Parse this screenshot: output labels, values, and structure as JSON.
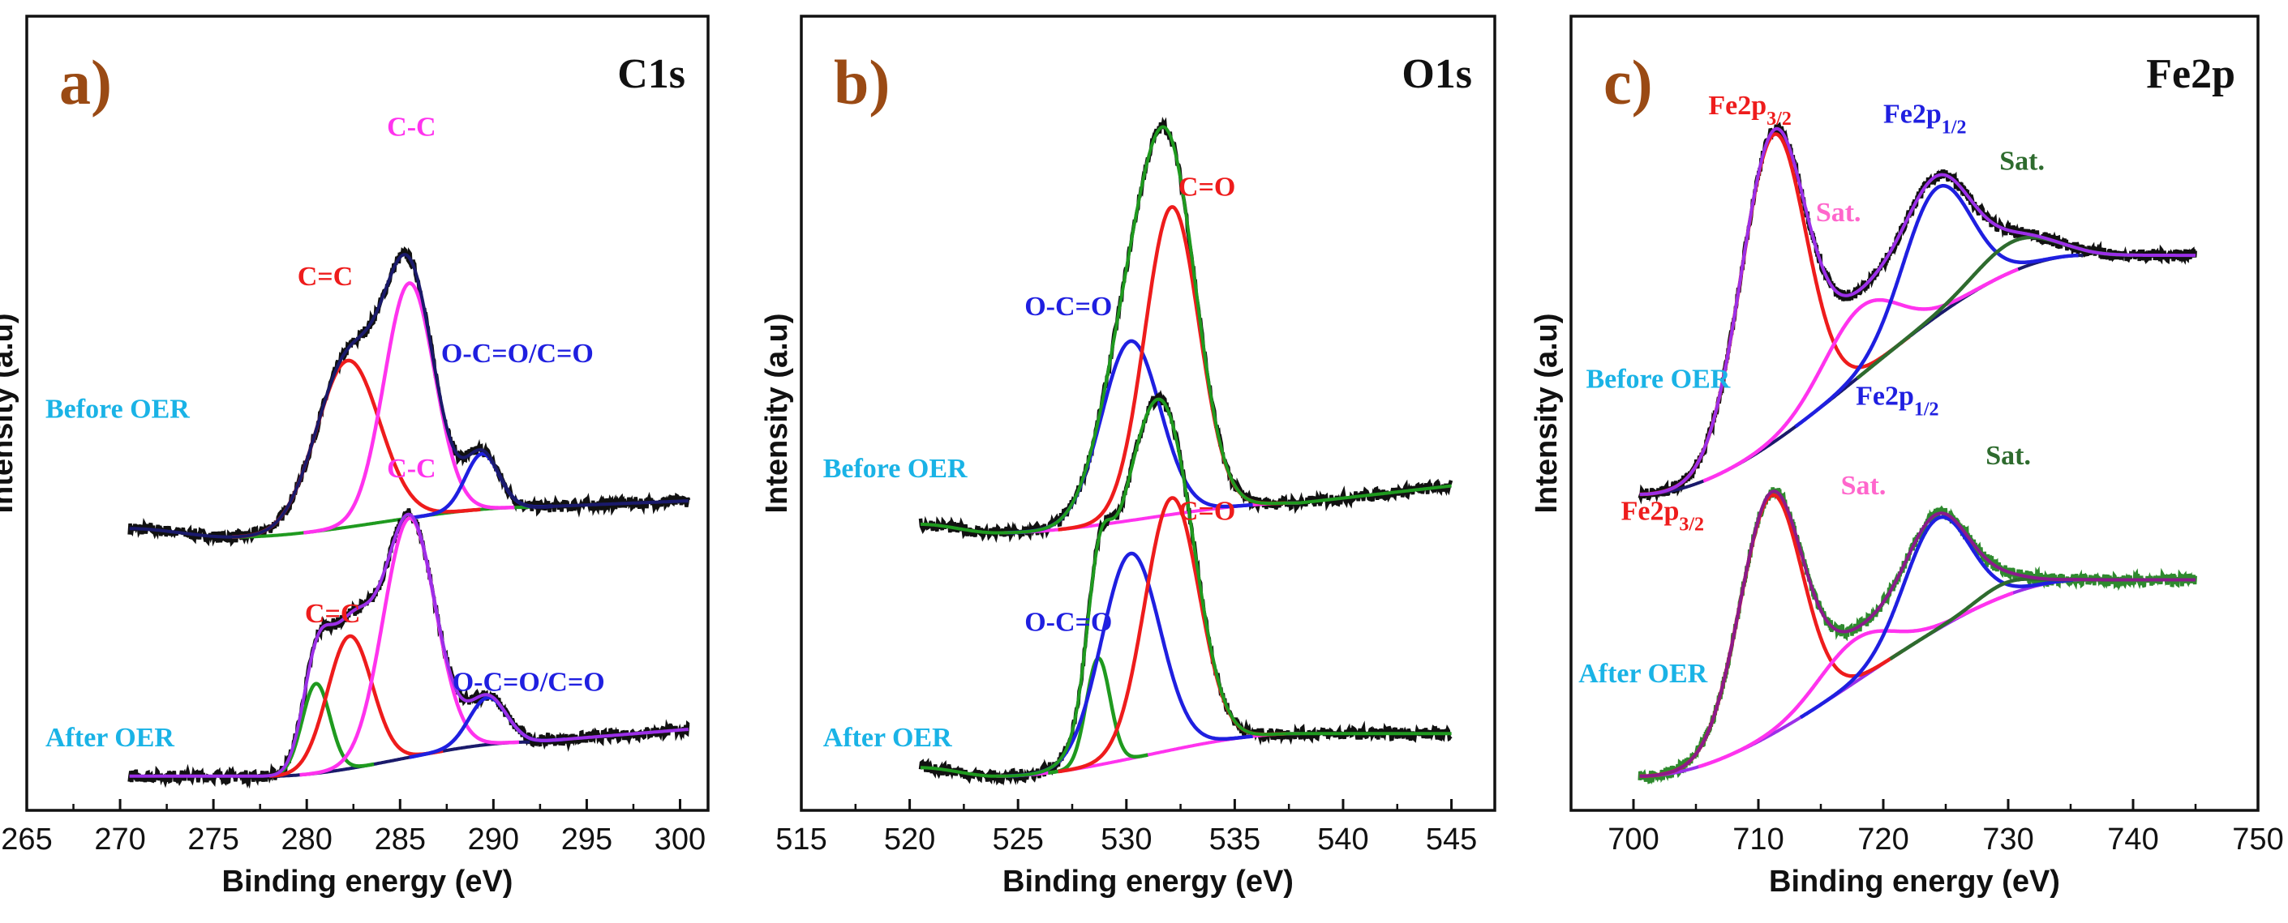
{
  "colors": {
    "frame": "#111111",
    "raw": "#111111",
    "panel_letter": "#9a4a14",
    "state_label": "#1ab3e6",
    "red": "#ee1c1c",
    "magenta": "#ff33ee",
    "blue": "#1f1fe0",
    "green": "#1f9a1f",
    "darkgreen": "#2e6b2e",
    "navy": "#1a1a6b",
    "purple": "#9b2fe8",
    "olive": "#2e8a2e",
    "maroon": "#8b1a8b",
    "pink": "#ff66cc"
  },
  "chart_data": [
    {
      "panel": "a",
      "type": "line",
      "letter": "a)",
      "title": "C1s",
      "xlabel": "Binding energy (eV)",
      "ylabel": "Intensity (a.u)",
      "xlim": [
        265,
        301.5
      ],
      "xticks": [
        265,
        270,
        275,
        280,
        285,
        290,
        295,
        300
      ],
      "stacks": [
        {
          "state": "Before OER",
          "x_range": [
            270.5,
            300.5
          ],
          "baseline_offset": 0.56,
          "raw_color": "#111111",
          "envelope_color": "#1a1a6b",
          "background": {
            "color": "#1f9a1f",
            "start": 0.0,
            "end": 0.07,
            "x_start": 276,
            "x_end": 292
          },
          "tail": {
            "left": 0.02,
            "right": 0.085
          },
          "peaks": [
            {
              "label": "C=C",
              "center": 282.2,
              "height": 0.39,
              "width": 1.7,
              "color": "#ee1c1c"
            },
            {
              "label": "C-C",
              "center": 285.5,
              "height": 0.55,
              "width": 1.35,
              "color": "#ff33ee"
            },
            {
              "label": "O-C=O/C=O",
              "center": 289.4,
              "height": 0.13,
              "width": 0.9,
              "color": "#1f1fe0"
            }
          ]
        },
        {
          "state": "After OER",
          "x_range": [
            270.5,
            300.5
          ],
          "baseline_offset": 0.0,
          "raw_color": "#111111",
          "envelope_color": "#9b2fe8",
          "background": {
            "color": "#1a1a6b",
            "start": 0.0,
            "end": 0.08,
            "x_start": 278,
            "x_end": 292
          },
          "tail": {
            "left": 0.0,
            "right": 0.11
          },
          "peaks": [
            {
              "label": "",
              "center": 280.5,
              "height": 0.21,
              "width": 0.75,
              "color": "#1f9a1f"
            },
            {
              "label": "C=C",
              "center": 282.3,
              "height": 0.31,
              "width": 1.2,
              "color": "#ee1c1c"
            },
            {
              "label": "C-C",
              "center": 285.5,
              "height": 0.56,
              "width": 1.4,
              "color": "#ff33ee"
            },
            {
              "label": "O-C=O/C=O",
              "center": 289.7,
              "height": 0.11,
              "width": 1.0,
              "color": "#1f1fe0"
            }
          ]
        }
      ],
      "labels": [
        {
          "text": "C-C",
          "x": 284.3,
          "y": 1.5,
          "color": "#ff33ee"
        },
        {
          "text": "C=C",
          "x": 279.5,
          "y": 1.15,
          "color": "#ee1c1c"
        },
        {
          "text": "O-C=O/C=O",
          "x": 287.2,
          "y": 0.97,
          "color": "#1f1fe0"
        },
        {
          "text": "Before OER",
          "x": 266.0,
          "y": 0.84,
          "color": "#1ab3e6"
        },
        {
          "text": "C-C",
          "x": 284.3,
          "y": 0.7,
          "color": "#ff33ee"
        },
        {
          "text": "C=C",
          "x": 279.9,
          "y": 0.36,
          "color": "#ee1c1c"
        },
        {
          "text": "O-C=O/C=O",
          "x": 287.8,
          "y": 0.2,
          "color": "#1f1fe0"
        },
        {
          "text": "After OER",
          "x": 266.0,
          "y": 0.07,
          "color": "#1ab3e6"
        }
      ]
    },
    {
      "panel": "b",
      "type": "line",
      "letter": "b)",
      "title": "O1s",
      "xlabel": "Binding energy (eV)",
      "ylabel": "Intensity (a.u)",
      "xlim": [
        515,
        547
      ],
      "xticks": [
        515,
        520,
        525,
        530,
        535,
        540,
        545
      ],
      "stacks": [
        {
          "state": "Before OER",
          "x_range": [
            520.5,
            545
          ],
          "baseline_offset": 0.57,
          "raw_color": "#111111",
          "envelope_color": "#1f9a1f",
          "background": {
            "color": "#ff33ee",
            "start": 0.0,
            "end": 0.07,
            "x_start": 524,
            "x_end": 538
          },
          "tail": {
            "left": 0.02,
            "right": 0.11
          },
          "peaks": [
            {
              "label": "O-C=O",
              "center": 530.2,
              "height": 0.42,
              "width": 1.35,
              "color": "#1f1fe0"
            },
            {
              "label": "C=O",
              "center": 532.1,
              "height": 0.72,
              "width": 1.25,
              "color": "#ee1c1c"
            }
          ]
        },
        {
          "state": "After OER",
          "x_range": [
            520.5,
            545
          ],
          "baseline_offset": 0.0,
          "raw_color": "#111111",
          "envelope_color": "#1f9a1f",
          "background": {
            "color": "#ff33ee",
            "start": 0.0,
            "end": 0.1,
            "x_start": 524,
            "x_end": 538
          },
          "tail": {
            "left": 0.02,
            "right": 0.1
          },
          "peaks": [
            {
              "label": "",
              "center": 528.7,
              "height": 0.25,
              "width": 0.55,
              "color": "#1f9a1f"
            },
            {
              "label": "O-C=O",
              "center": 530.2,
              "height": 0.48,
              "width": 1.35,
              "color": "#1f1fe0"
            },
            {
              "label": "C=O",
              "center": 532.1,
              "height": 0.59,
              "width": 1.25,
              "color": "#ee1c1c"
            }
          ]
        }
      ],
      "labels": [
        {
          "text": "C=O",
          "x": 532.4,
          "y": 1.36,
          "color": "#ee1c1c"
        },
        {
          "text": "O-C=O",
          "x": 525.3,
          "y": 1.08,
          "color": "#1f1fe0"
        },
        {
          "text": "Before OER",
          "x": 516.0,
          "y": 0.7,
          "color": "#1ab3e6"
        },
        {
          "text": "C=O",
          "x": 532.4,
          "y": 0.6,
          "color": "#ee1c1c"
        },
        {
          "text": "O-C=O",
          "x": 525.3,
          "y": 0.34,
          "color": "#1f1fe0"
        },
        {
          "text": "After OER",
          "x": 516.0,
          "y": 0.07,
          "color": "#1ab3e6"
        }
      ]
    },
    {
      "panel": "c",
      "type": "line",
      "letter": "c)",
      "title": "Fe2p",
      "xlabel": "Binding energy (eV)",
      "ylabel": "Intensity (a.u)",
      "xlim": [
        695,
        750
      ],
      "xticks": [
        700,
        710,
        720,
        730,
        740,
        750
      ],
      "stacks": [
        {
          "state": "Before OER",
          "x_range": [
            700.5,
            745
          ],
          "baseline_offset": 0.66,
          "raw_color": "#111111",
          "envelope_color": "#9b2fe8",
          "background": {
            "color": "#1a1a6b",
            "type": "shirley",
            "start": 0.0,
            "end": 0.56,
            "x_start": 700.5,
            "x_end": 736
          },
          "tail": {
            "left": 0.0,
            "right": 0.56
          },
          "peaks": [
            {
              "label": "Fe2p3/2",
              "center": 711.2,
              "height": 0.72,
              "width": 2.6,
              "color": "#ee1c1c"
            },
            {
              "label": "Sat.",
              "center": 718.2,
              "height": 0.16,
              "width": 3.0,
              "color": "#ff33ee"
            },
            {
              "label": "Fe2p1/2",
              "center": 724.3,
              "height": 0.3,
              "width": 2.7,
              "color": "#1f1fe0"
            },
            {
              "label": "Sat.",
              "center": 730.5,
              "height": 0.07,
              "width": 3.0,
              "color": "#2e6b2e"
            }
          ]
        },
        {
          "state": "After OER",
          "x_range": [
            700.5,
            745
          ],
          "baseline_offset": 0.0,
          "raw_color": "#2e8a2e",
          "envelope_color": "#8b1a8b",
          "background": {
            "color": "#9b2fe8",
            "type": "shirley",
            "start": 0.0,
            "end": 0.46,
            "x_start": 700.5,
            "x_end": 736
          },
          "tail": {
            "left": 0.0,
            "right": 0.46
          },
          "peaks": [
            {
              "label": "Fe2p3/2",
              "center": 711.0,
              "height": 0.56,
              "width": 2.5,
              "color": "#ee1c1c"
            },
            {
              "label": "Sat.",
              "center": 717.8,
              "height": 0.1,
              "width": 3.0,
              "color": "#ff33ee"
            },
            {
              "label": "Fe2p1/2",
              "center": 724.3,
              "height": 0.26,
              "width": 2.6,
              "color": "#1f1fe0"
            },
            {
              "label": "Sat.",
              "center": 729.8,
              "height": 0.03,
              "width": 2.2,
              "color": "#2e6b2e"
            }
          ]
        }
      ],
      "labels": [
        {
          "text": "Fe2p",
          "sub": "3/2",
          "x": 706.0,
          "y": 1.55,
          "color": "#ee1c1c"
        },
        {
          "text": "Fe2p",
          "sub": "1/2",
          "x": 720.0,
          "y": 1.53,
          "color": "#1f1fe0"
        },
        {
          "text": "Sat.",
          "x": 729.3,
          "y": 1.42,
          "color": "#2e6b2e"
        },
        {
          "text": "Sat.",
          "x": 714.6,
          "y": 1.3,
          "color": "#ff66cc"
        },
        {
          "text": "Before OER",
          "x": 696.2,
          "y": 0.91,
          "color": "#1ab3e6"
        },
        {
          "text": "Fe2p",
          "sub": "1/2",
          "x": 717.8,
          "y": 0.87,
          "color": "#1f1fe0"
        },
        {
          "text": "Sat.",
          "x": 728.2,
          "y": 0.73,
          "color": "#2e6b2e"
        },
        {
          "text": "Sat.",
          "x": 716.6,
          "y": 0.66,
          "color": "#ff66cc"
        },
        {
          "text": "Fe2p",
          "sub": "3/2",
          "x": 699.0,
          "y": 0.6,
          "color": "#ee1c1c"
        },
        {
          "text": "After OER",
          "x": 695.6,
          "y": 0.22,
          "color": "#1ab3e6"
        }
      ]
    }
  ]
}
